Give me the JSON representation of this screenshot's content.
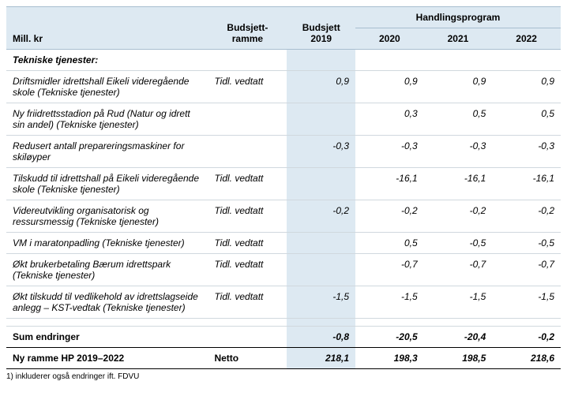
{
  "headers": {
    "mill": "Mill. kr",
    "budsjettramme_l1": "Budsjett-",
    "budsjettramme_l2": "ramme",
    "budsjett2019_l1": "Budsjett",
    "budsjett2019_l2": "2019",
    "handlingsprogram": "Handlingsprogram",
    "y2020": "2020",
    "y2021": "2021",
    "y2022": "2022"
  },
  "section_title": "Tekniske tjenester:",
  "rows": [
    {
      "desc": "Driftsmidler idrettshall Eikeli videregående skole (Tekniske tjenester)",
      "ramme": "Tidl. vedtatt",
      "b2019": "0,9",
      "y2020": "0,9",
      "y2021": "0,9",
      "y2022": "0,9"
    },
    {
      "desc": "Ny friidrettsstadion på Rud (Natur og idrett sin andel) (Tekniske tjenester)",
      "ramme": "",
      "b2019": "",
      "y2020": "0,3",
      "y2021": "0,5",
      "y2022": "0,5"
    },
    {
      "desc": "Redusert antall prepareringsmaskiner for skiløyper",
      "ramme": "",
      "b2019": "-0,3",
      "y2020": "-0,3",
      "y2021": "-0,3",
      "y2022": "-0,3"
    },
    {
      "desc": "Tilskudd til idrettshall på Eikeli videregående skole (Tekniske tjenester)",
      "ramme": "Tidl. vedtatt",
      "b2019": "",
      "y2020": "-16,1",
      "y2021": "-16,1",
      "y2022": "-16,1"
    },
    {
      "desc": "Videreutvikling organisatorisk og ressursmessig (Tekniske tjenester)",
      "ramme": "Tidl. vedtatt",
      "b2019": "-0,2",
      "y2020": "-0,2",
      "y2021": "-0,2",
      "y2022": "-0,2"
    },
    {
      "desc": "VM i maratonpadling (Tekniske tjenester)",
      "ramme": "Tidl. vedtatt",
      "b2019": "",
      "y2020": "0,5",
      "y2021": "-0,5",
      "y2022": "-0,5"
    },
    {
      "desc": "Økt brukerbetaling Bærum idrettspark (Tekniske tjenester)",
      "ramme": "Tidl. vedtatt",
      "b2019": "",
      "y2020": "-0,7",
      "y2021": "-0,7",
      "y2022": "-0,7"
    },
    {
      "desc": "Økt tilskudd til vedlikehold av idrettslagseide anlegg – KST-vedtak\n(Tekniske tjenester)",
      "ramme": "Tidl. vedtatt",
      "b2019": "-1,5",
      "y2020": "-1,5",
      "y2021": "-1,5",
      "y2022": "-1,5"
    }
  ],
  "sum": {
    "label": "Sum endringer",
    "b2019": "-0,8",
    "y2020": "-20,5",
    "y2021": "-20,4",
    "y2022": "-0,2"
  },
  "total": {
    "label": "Ny ramme HP 2019–2022",
    "ramme": "Netto",
    "b2019": "218,1",
    "y2020": "198,3",
    "y2021": "198,5",
    "y2022": "218,6"
  },
  "footnote": "1) inkluderer også endringer ift. FDVU",
  "colors": {
    "header_bg": "#dde9f2",
    "border": "#a8bed0",
    "row_border": "#d0d8de"
  }
}
